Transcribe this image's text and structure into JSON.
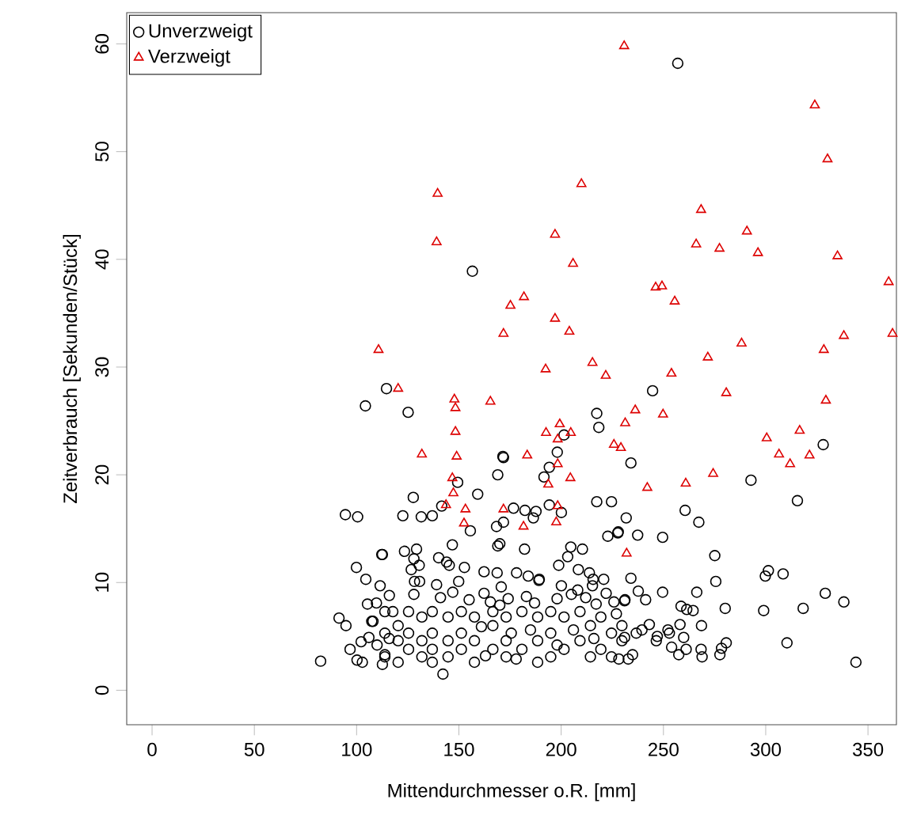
{
  "chart_data": {
    "type": "scatter",
    "xlabel": "Mittendurchmesser o.R. [mm]",
    "ylabel": "Zeitverbrauch [Sekunden/Stück]",
    "xlim": [
      -12.4,
      363.9
    ],
    "ylim": [
      -3.2,
      62.9
    ],
    "xticks": [
      0,
      50,
      100,
      150,
      200,
      250,
      300,
      350
    ],
    "yticks": [
      0,
      10,
      20,
      30,
      40,
      50,
      60
    ],
    "legend": "top left",
    "grid": false,
    "series": [
      {
        "name": "Unverzweigt",
        "color": "#000000",
        "marker": "circle",
        "x": [
          156.6,
          114.6,
          104.3,
          125.2,
          171.5,
          257.0,
          244.7,
          217.4,
          218.4,
          201.4,
          198.1,
          328.1,
          94.5,
          100.5,
          112.3,
          99.9,
          104.5,
          111.5,
          105.3,
          109.7,
          91.4,
          94.8,
          82.4,
          96.8,
          100.2,
          102.8,
          102.2,
          107.4,
          113.8,
          112.6,
          115.9,
          117.7,
          234.1,
          292.8,
          315.5,
          260.6,
          267.3,
          231.8,
          227.9,
          237.4,
          249.6,
          275.1,
          275.6,
          301.3,
          299.8,
          308.5,
          234.1,
          237.7,
          241.3,
          249.6,
          266.3,
          231.2,
          329.1,
          338.2,
          318.3,
          299.0,
          280.2,
          258.6,
          261.4,
          264.5,
          243.1,
          239.5,
          236.7,
          252.2,
          252.9,
          258.1,
          268.6,
          231.0,
          247.0,
          246.5,
          259.9,
          280.7,
          278.4,
          277.6,
          254.0,
          257.5,
          261.1,
          268.4,
          268.9,
          310.4,
          344.1,
          234.9,
          232.8,
          228.2,
          171.8,
          169.0,
          149.4,
          191.6,
          194.2,
          127.7,
          159.2,
          122.6,
          131.6,
          137.0,
          141.6,
          176.7,
          182.3,
          187.7,
          186.4,
          194.2,
          200.1,
          168.4,
          171.8,
          155.6,
          217.4,
          224.6,
          222.8,
          227.7,
          146.8,
          169.0,
          170.0,
          182.1,
          204.7,
          210.4,
          203.2,
          112.6,
          123.4,
          129.3,
          128.0,
          130.6,
          126.7,
          128.3,
          130.8,
          140.1,
          144.0,
          145.3,
          152.7,
          162.3,
          168.7,
          178.2,
          183.9,
          189.3,
          198.8,
          208.4,
          213.8,
          215.6,
          220.8,
          139.1,
          149.9,
          170.7,
          189.1,
          200.1,
          208.1,
          215.3,
          162.3,
          165.4,
          174.1,
          187.0,
          198.0,
          217.1,
          225.8,
          231.0,
          113.8,
          113.8,
          113.8,
          120.3,
          120.3,
          120.3,
          125.4,
          125.4,
          125.4,
          131.9,
          131.9,
          131.9,
          137.0,
          137.0,
          137.0,
          137.0,
          144.7,
          144.7,
          144.7,
          142.2,
          151.2,
          151.2,
          151.2,
          157.6,
          157.6,
          157.6,
          166.6,
          166.6,
          166.6,
          173.1,
          173.1,
          173.1,
          175.6,
          180.8,
          180.8,
          188.5,
          188.5,
          188.5,
          194.9,
          194.9,
          194.9,
          201.4,
          201.4,
          209.2,
          209.2,
          214.3,
          214.3,
          219.4,
          219.4,
          224.6,
          224.6,
          229.7,
          229.7,
          110,
          116,
          128,
          141,
          147,
          155,
          170,
          183,
          205,
          212,
          222,
          108,
          106,
          161,
          163,
          178,
          185,
          198,
          206,
          216,
          227
        ],
        "values": [
          38.9,
          28.0,
          26.4,
          25.8,
          21.7,
          58.2,
          27.8,
          25.7,
          24.4,
          23.7,
          22.1,
          22.8,
          16.3,
          16.1,
          12.6,
          11.4,
          10.3,
          9.7,
          8.0,
          8.1,
          6.7,
          6.0,
          2.7,
          3.8,
          2.8,
          2.6,
          4.5,
          6.4,
          3.3,
          2.4,
          4.8,
          7.3,
          21.1,
          19.5,
          17.6,
          16.7,
          15.6,
          16.0,
          14.7,
          14.4,
          14.2,
          12.5,
          10.1,
          11.1,
          10.6,
          10.8,
          10.4,
          9.2,
          8.4,
          9.1,
          9.1,
          8.4,
          9.0,
          8.2,
          7.6,
          7.4,
          7.6,
          7.8,
          7.5,
          7.4,
          6.1,
          5.6,
          5.3,
          5.6,
          5.3,
          6.1,
          6.0,
          4.9,
          5.0,
          4.6,
          4.9,
          4.4,
          3.9,
          3.3,
          4.0,
          3.3,
          3.8,
          3.8,
          3.1,
          4.4,
          2.6,
          3.3,
          2.9,
          2.9,
          21.6,
          20.0,
          19.3,
          19.8,
          20.7,
          17.9,
          18.2,
          16.2,
          16.1,
          16.2,
          17.1,
          16.9,
          16.7,
          16.6,
          16.0,
          17.2,
          16.5,
          15.2,
          15.6,
          14.8,
          17.5,
          17.5,
          14.3,
          14.6,
          13.5,
          13.4,
          13.6,
          13.1,
          13.3,
          13.1,
          12.4,
          12.6,
          12.9,
          13.1,
          12.2,
          11.6,
          11.2,
          10.1,
          10.1,
          12.3,
          11.9,
          11.6,
          11.4,
          11.0,
          10.9,
          10.9,
          10.6,
          10.3,
          11.6,
          11.2,
          10.9,
          10.3,
          10.3,
          9.8,
          10.1,
          9.6,
          10.2,
          9.7,
          9.3,
          9.7,
          9.0,
          8.2,
          8.5,
          8.1,
          8.5,
          8.0,
          8.2,
          8.3,
          7.3,
          5.3,
          3.1,
          6.0,
          4.6,
          2.6,
          7.3,
          5.3,
          3.8,
          6.8,
          4.6,
          3.1,
          7.3,
          5.3,
          3.8,
          2.6,
          6.8,
          4.6,
          3.1,
          1.5,
          7.3,
          5.3,
          3.8,
          6.8,
          4.6,
          2.6,
          7.3,
          6.0,
          3.8,
          6.8,
          4.6,
          3.1,
          5.3,
          7.3,
          3.8,
          6.8,
          4.6,
          2.6,
          7.3,
          5.3,
          3.1,
          6.8,
          3.8,
          7.3,
          4.6,
          6.0,
          3.1,
          6.8,
          3.8,
          5.3,
          3.1,
          6.0,
          4.6,
          4.2,
          8.8,
          8.9,
          8.6,
          9.1,
          8.4,
          7.9,
          8.7,
          8.9,
          8.6,
          9.0,
          6.4,
          4.9,
          5.9,
          3.2,
          2.9,
          5.6,
          4.2,
          5.6,
          4.8,
          7.1
        ]
      },
      {
        "name": "Verzweigt",
        "color": "#dd0000",
        "marker": "triangle",
        "x": [
          139.6,
          139.1,
          175.2,
          181.8,
          171.8,
          110.7,
          120.3,
          147.8,
          148.3,
          165.4,
          148.3,
          131.9,
          148.9,
          230.8,
          324.0,
          330.2,
          209.9,
          268.4,
          197.0,
          290.8,
          266.0,
          277.4,
          296.2,
          205.8,
          335.1,
          360.1,
          246.2,
          249.3,
          255.5,
          197.0,
          204.0,
          362.0,
          338.2,
          288.2,
          328.4,
          271.7,
          192.4,
          215.3,
          221.8,
          253.9,
          280.7,
          329.4,
          236.2,
          231.3,
          249.8,
          192.6,
          199.3,
          204.7,
          198.3,
          225.8,
          229.2,
          300.5,
          316.6,
          306.5,
          321.4,
          183.4,
          198.3,
          193.7,
          204.5,
          146.8,
          147.3,
          143.7,
          153.2,
          152.5,
          171.8,
          181.6,
          198.3,
          197.6,
          232.0,
          242.1,
          311.9,
          260.9,
          274.3
        ],
        "values": [
          46.1,
          41.6,
          35.7,
          36.5,
          33.1,
          31.6,
          28.0,
          27.0,
          26.2,
          26.8,
          24.0,
          21.9,
          21.7,
          59.8,
          54.3,
          49.3,
          47.0,
          44.6,
          42.3,
          42.6,
          41.4,
          41.0,
          40.6,
          39.6,
          40.3,
          37.9,
          37.4,
          37.5,
          36.1,
          34.5,
          33.3,
          33.1,
          32.9,
          32.2,
          31.6,
          30.9,
          29.8,
          30.4,
          29.2,
          29.4,
          27.6,
          26.9,
          26.0,
          24.8,
          25.6,
          23.9,
          24.7,
          23.9,
          23.3,
          22.8,
          22.5,
          23.4,
          24.1,
          21.9,
          21.8,
          21.8,
          21.0,
          19.1,
          19.7,
          19.7,
          18.3,
          17.2,
          16.8,
          15.5,
          16.8,
          15.2,
          17.1,
          15.6,
          12.7,
          18.8,
          21.0,
          19.2,
          20.1
        ]
      }
    ]
  }
}
